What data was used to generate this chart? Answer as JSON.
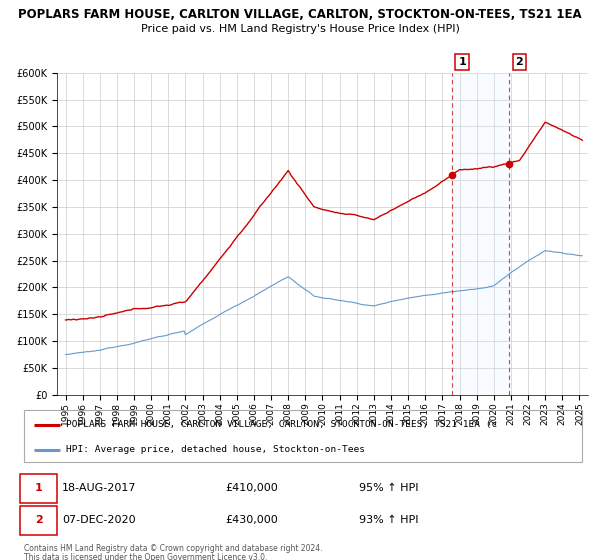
{
  "title": "POPLARS FARM HOUSE, CARLTON VILLAGE, CARLTON, STOCKTON-ON-TEES, TS21 1EA",
  "subtitle": "Price paid vs. HM Land Registry's House Price Index (HPI)",
  "sale1_year": 2017,
  "sale1_month": 8,
  "sale1_price": 410000,
  "sale1_label": "18-AUG-2017",
  "sale1_pct": "95% ↑ HPI",
  "sale1_amount": "£410,000",
  "sale2_year": 2020,
  "sale2_month": 12,
  "sale2_price": 430000,
  "sale2_label": "07-DEC-2020",
  "sale2_pct": "93% ↑ HPI",
  "sale2_amount": "£430,000",
  "legend_property": "POPLARS FARM HOUSE, CARLTON VILLAGE, CARLTON, STOCKTON-ON-TEES, TS21 1EA (c",
  "legend_hpi": "HPI: Average price, detached house, Stockton-on-Tees",
  "ylim": [
    0,
    600000
  ],
  "xlim_start": 1994.5,
  "xlim_end": 2025.5,
  "property_color": "#cc0000",
  "hpi_color": "#6699cc",
  "vline_color": "#cc3333",
  "span_color": "#ddeeff",
  "grid_color": "#cccccc",
  "footnote1": "Contains HM Land Registry data © Crown copyright and database right 2024.",
  "footnote2": "This data is licensed under the Open Government Licence v3.0.",
  "bg_color": "#ffffff"
}
